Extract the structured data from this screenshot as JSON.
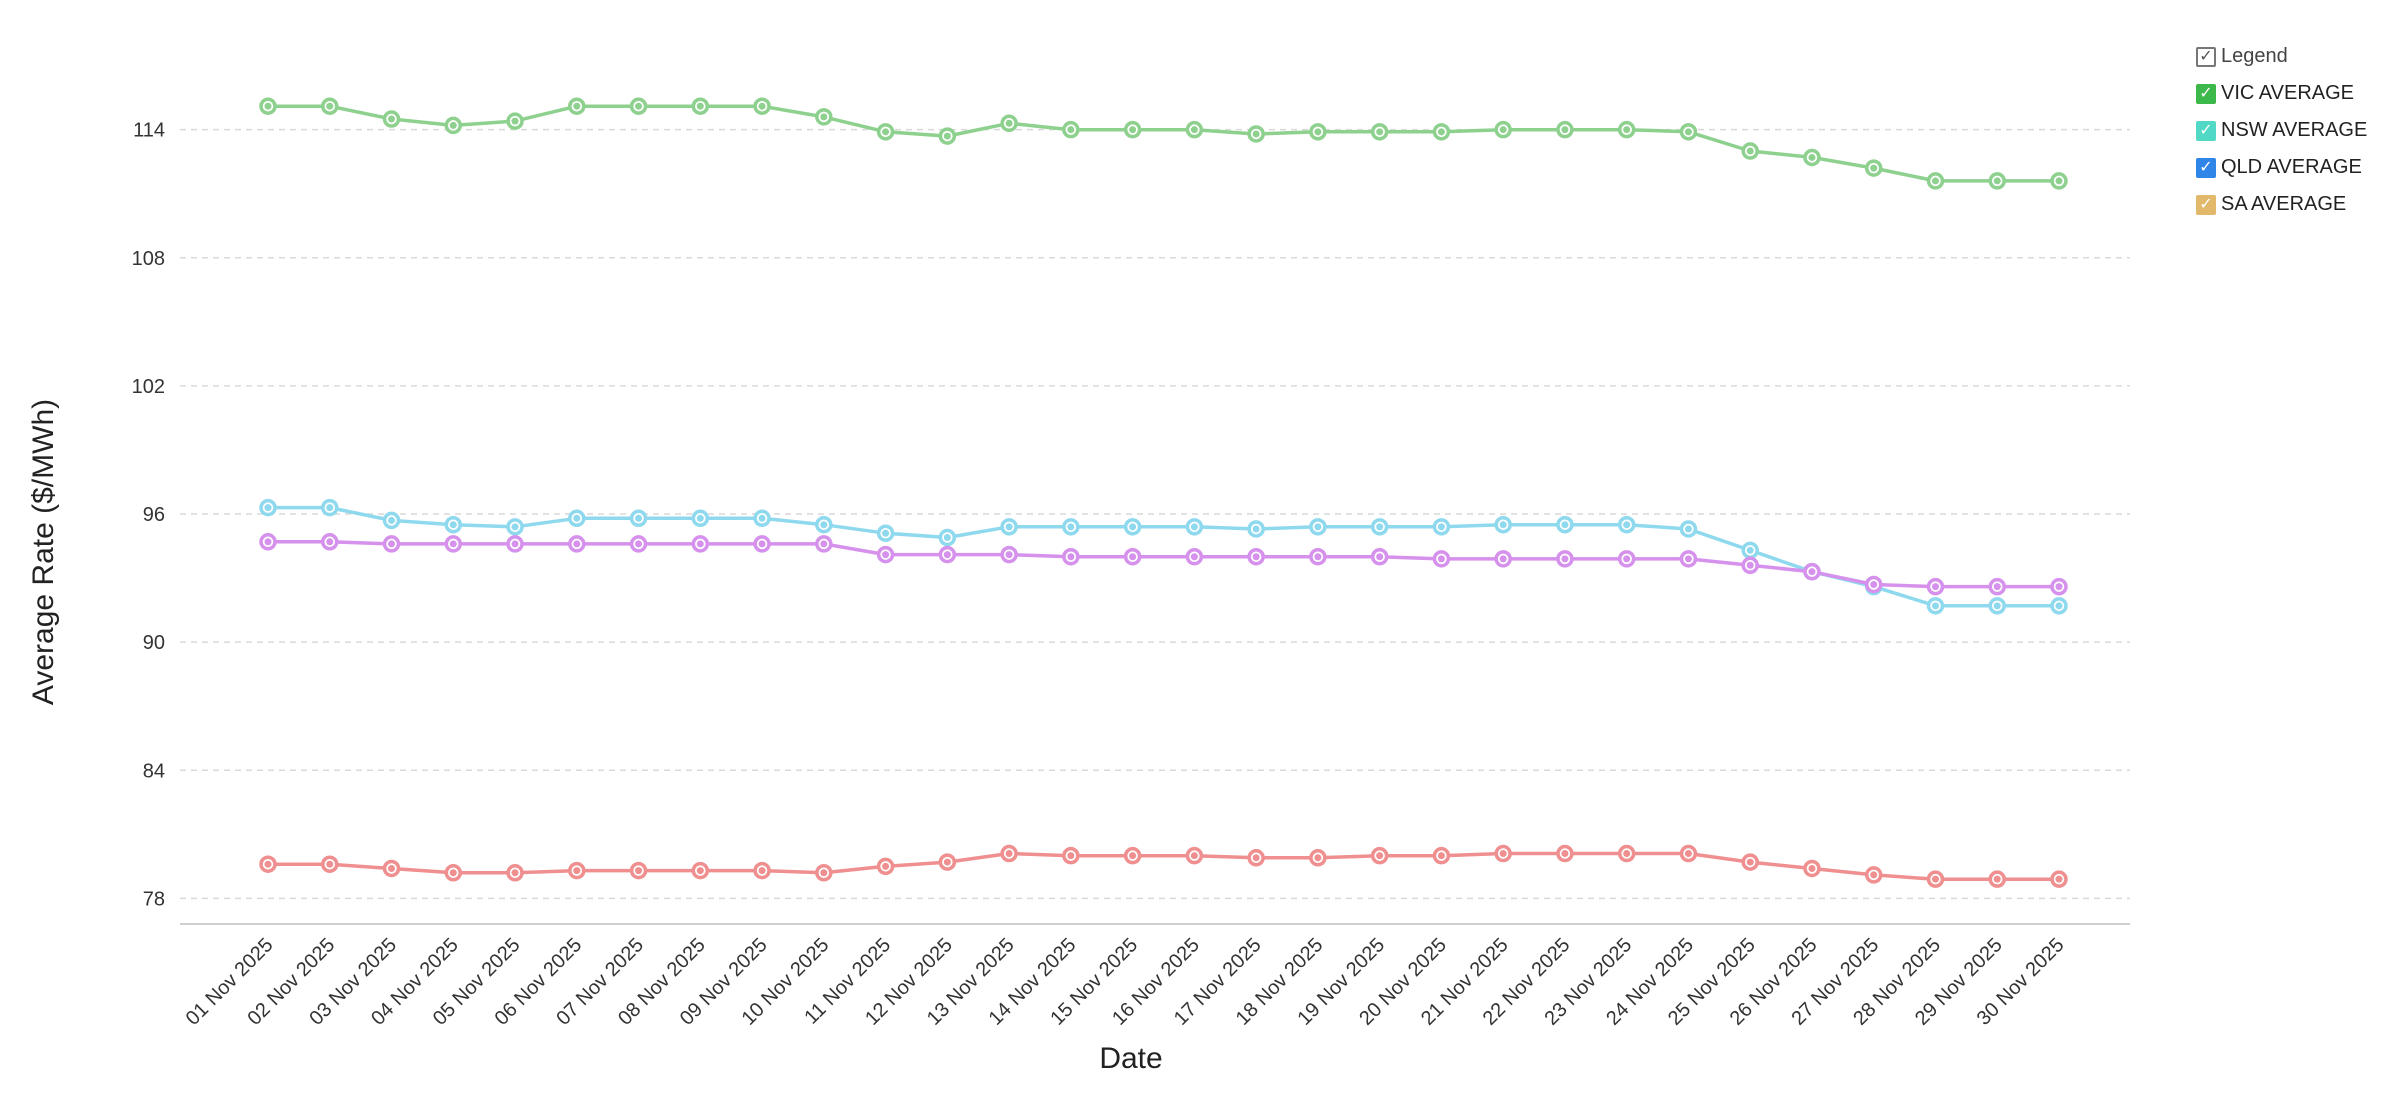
{
  "chart_data": {
    "type": "line",
    "xlabel": "Date",
    "ylabel": "Average Rate ($/MWh)",
    "ylim": [
      76.8,
      118.2
    ],
    "yticks": [
      78,
      84,
      90,
      96,
      102,
      108,
      114
    ],
    "grid": true,
    "legend_position": "top-right",
    "legend_title": "Legend",
    "categories": [
      "01 Nov 2025",
      "02 Nov 2025",
      "03 Nov 2025",
      "04 Nov 2025",
      "05 Nov 2025",
      "06 Nov 2025",
      "07 Nov 2025",
      "08 Nov 2025",
      "09 Nov 2025",
      "10 Nov 2025",
      "11 Nov 2025",
      "12 Nov 2025",
      "13 Nov 2025",
      "14 Nov 2025",
      "15 Nov 2025",
      "16 Nov 2025",
      "17 Nov 2025",
      "18 Nov 2025",
      "19 Nov 2025",
      "20 Nov 2025",
      "21 Nov 2025",
      "22 Nov 2025",
      "23 Nov 2025",
      "24 Nov 2025",
      "25 Nov 2025",
      "26 Nov 2025",
      "27 Nov 2025",
      "28 Nov 2025",
      "29 Nov 2025",
      "30 Nov 2025"
    ],
    "series": [
      {
        "name": "VIC AVERAGE",
        "color": "#8ed18f",
        "checkbox_color": "#3db84a",
        "values": [
          115.1,
          115.1,
          114.5,
          114.2,
          114.4,
          115.1,
          115.1,
          115.1,
          115.1,
          114.6,
          113.9,
          113.7,
          114.3,
          114.0,
          114.0,
          114.0,
          113.8,
          113.9,
          113.9,
          113.9,
          114.0,
          114.0,
          114.0,
          113.9,
          113.0,
          112.7,
          112.2,
          111.6,
          111.6,
          111.6
        ]
      },
      {
        "name": "NSW AVERAGE",
        "color": "#8fd9ee",
        "checkbox_color": "#52d9c5",
        "values": [
          96.3,
          96.3,
          95.7,
          95.5,
          95.4,
          95.8,
          95.8,
          95.8,
          95.8,
          95.5,
          95.1,
          94.9,
          95.4,
          95.4,
          95.4,
          95.4,
          95.3,
          95.4,
          95.4,
          95.4,
          95.5,
          95.5,
          95.5,
          95.3,
          94.3,
          93.3,
          92.6,
          91.7,
          91.7,
          91.7
        ]
      },
      {
        "name": "QLD AVERAGE",
        "color": "#d691ec",
        "checkbox_color": "#2f86e8",
        "values": [
          94.7,
          94.7,
          94.6,
          94.6,
          94.6,
          94.6,
          94.6,
          94.6,
          94.6,
          94.6,
          94.1,
          94.1,
          94.1,
          94.0,
          94.0,
          94.0,
          94.0,
          94.0,
          94.0,
          93.9,
          93.9,
          93.9,
          93.9,
          93.9,
          93.6,
          93.3,
          92.7,
          92.6,
          92.6,
          92.6
        ]
      },
      {
        "name": "SA AVERAGE",
        "color": "#ef8f8f",
        "checkbox_color": "#e2b96a",
        "values": [
          79.6,
          79.6,
          79.4,
          79.2,
          79.2,
          79.3,
          79.3,
          79.3,
          79.3,
          79.2,
          79.5,
          79.7,
          80.1,
          80.0,
          80.0,
          80.0,
          79.9,
          79.9,
          80.0,
          80.0,
          80.1,
          80.1,
          80.1,
          80.1,
          79.7,
          79.4,
          79.1,
          78.9,
          78.9,
          78.9
        ]
      }
    ]
  }
}
